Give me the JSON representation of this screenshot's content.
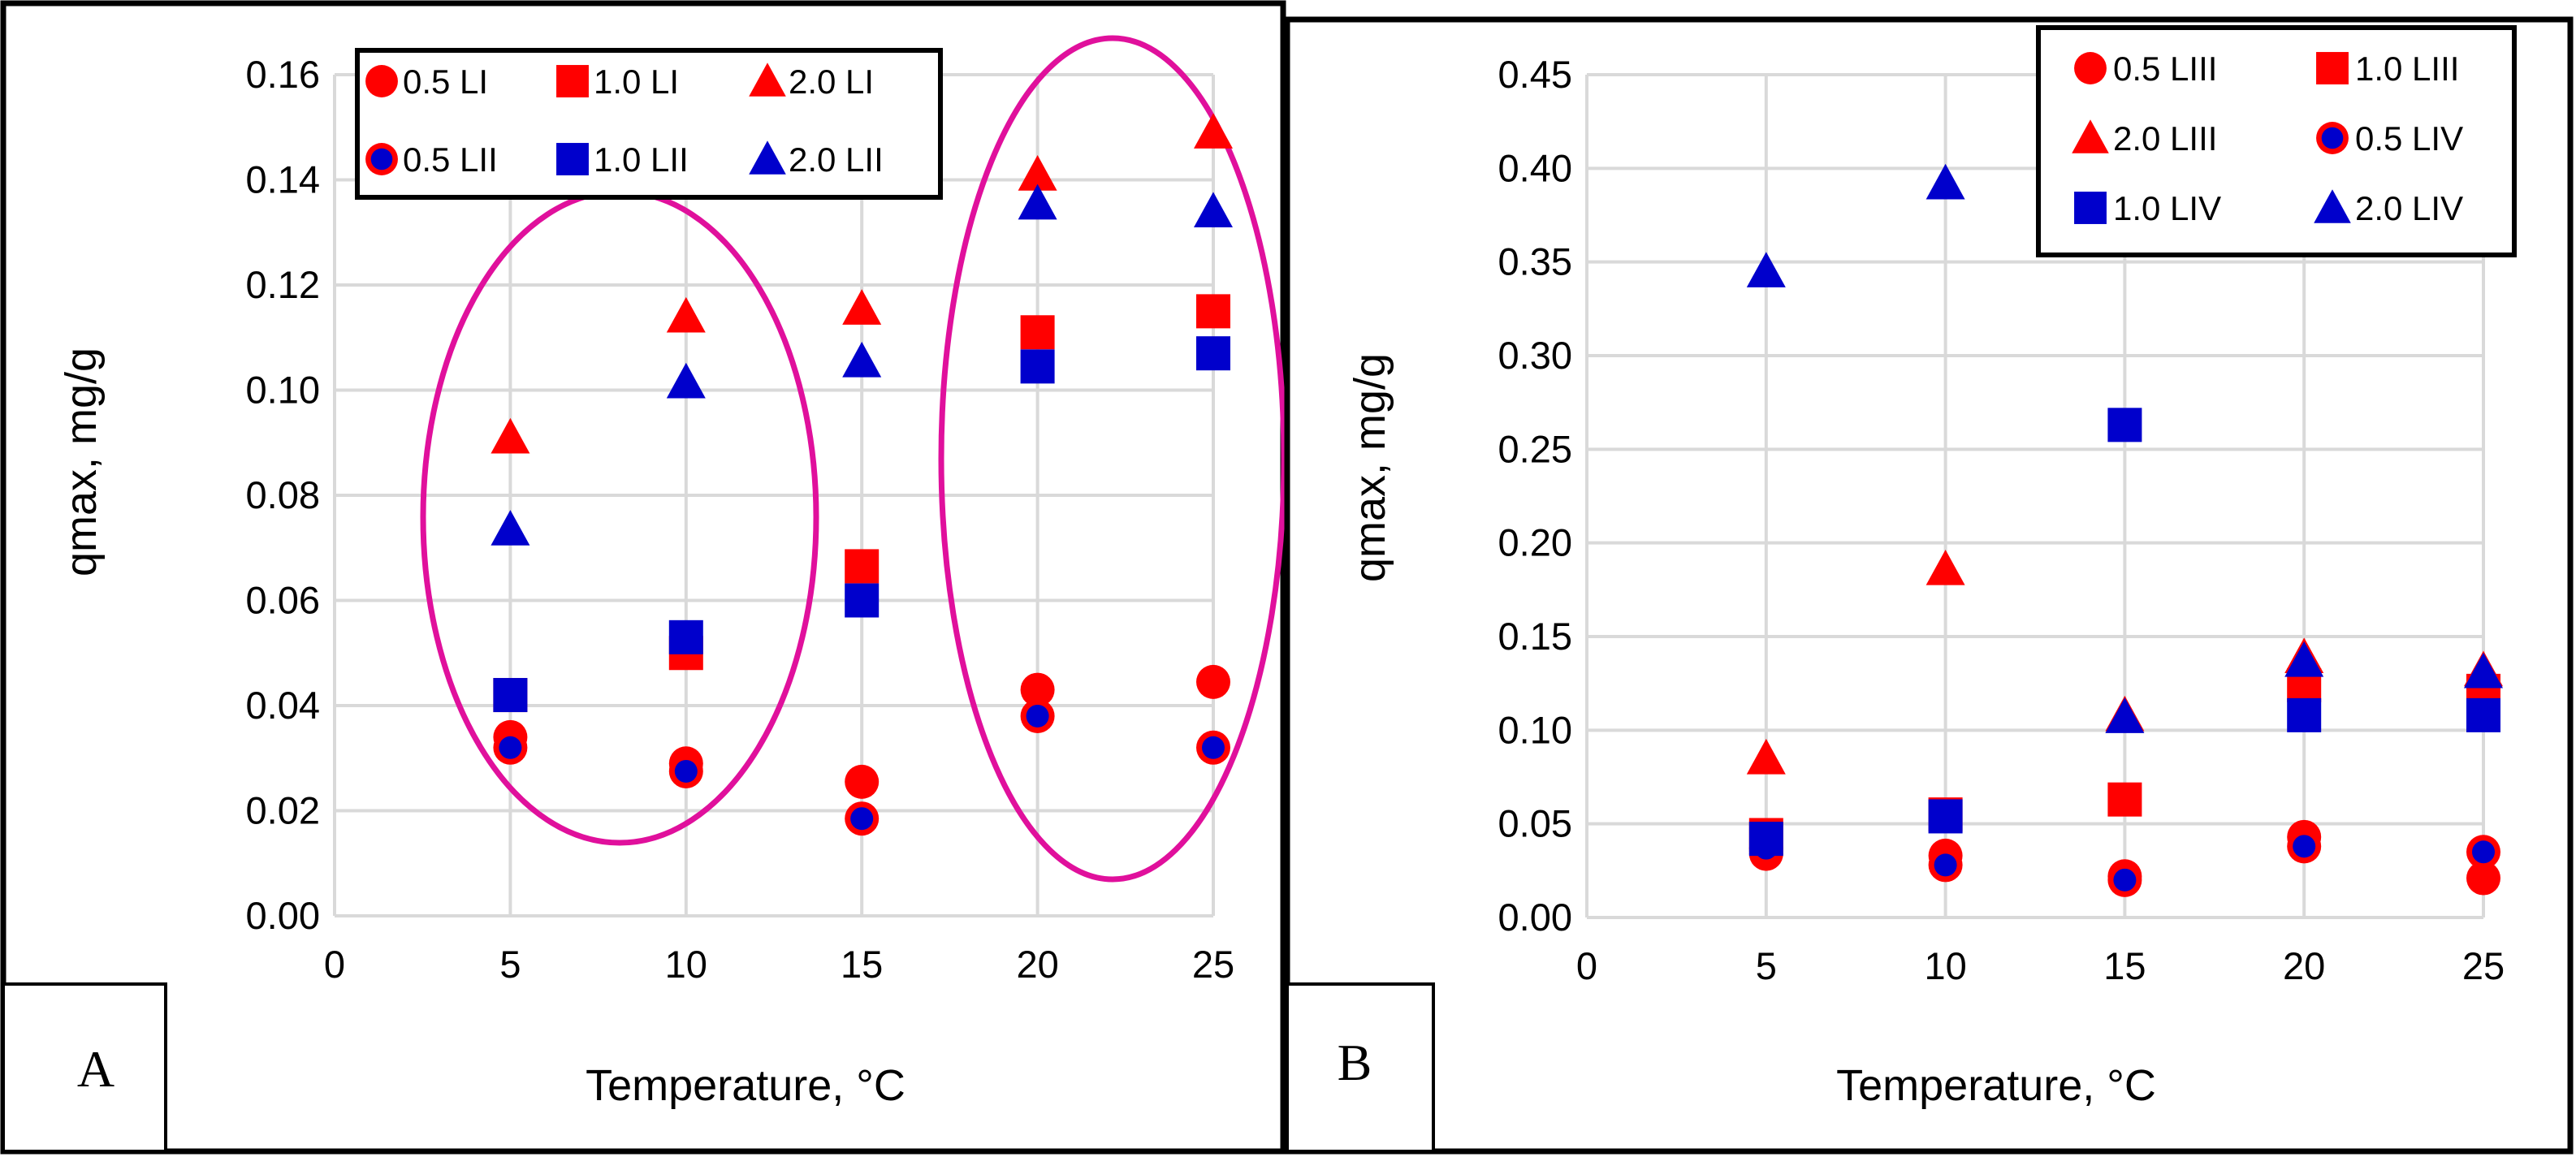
{
  "colors": {
    "red": "#ff0000",
    "blue": "#0000cc",
    "magenta": "#e0109c",
    "grid": "#d9d9d9"
  },
  "chart_data": [
    {
      "type": "scatter",
      "panel_label": "A",
      "xlabel": "Temperature, °C",
      "ylabel": "qmax, mg/g",
      "xlim": [
        0,
        25
      ],
      "ylim": [
        0,
        0.16
      ],
      "xticks": [
        "0",
        "5",
        "10",
        "15",
        "20",
        "25"
      ],
      "yticks": [
        "0.00",
        "0.02",
        "0.04",
        "0.06",
        "0.08",
        "0.10",
        "0.12",
        "0.14",
        "0.16"
      ],
      "grid": true,
      "legend_position": "top",
      "annotations": [
        "ellipse around 5–10 °C data",
        "ellipse around 20–25 °C data"
      ],
      "series": [
        {
          "name": "0.5 LI",
          "marker": "circle",
          "color": "red",
          "x": [
            5,
            10,
            15,
            20,
            25
          ],
          "y": [
            0.034,
            0.029,
            0.0255,
            0.043,
            0.0445
          ]
        },
        {
          "name": "1.0 LI",
          "marker": "square",
          "color": "red",
          "x": [
            5,
            10,
            15,
            20,
            25
          ],
          "y": [
            0.042,
            0.05,
            0.0665,
            0.111,
            0.115
          ]
        },
        {
          "name": "2.0 LI",
          "marker": "triangle",
          "color": "red",
          "x": [
            5,
            10,
            15,
            20,
            25
          ],
          "y": [
            0.091,
            0.114,
            0.1155,
            0.141,
            0.149
          ]
        },
        {
          "name": "0.5 LII",
          "marker": "ringed-circle",
          "color": "blue",
          "x": [
            5,
            10,
            15,
            20,
            25
          ],
          "y": [
            0.032,
            0.0275,
            0.0185,
            0.038,
            0.032
          ]
        },
        {
          "name": "1.0 LII",
          "marker": "square",
          "color": "blue",
          "x": [
            5,
            10,
            15,
            20,
            25
          ],
          "y": [
            0.042,
            0.053,
            0.06,
            0.1045,
            0.107
          ]
        },
        {
          "name": "2.0 LII",
          "marker": "triangle",
          "color": "blue",
          "x": [
            5,
            10,
            15,
            20,
            25
          ],
          "y": [
            0.0735,
            0.1015,
            0.1055,
            0.1355,
            0.134
          ]
        }
      ]
    },
    {
      "type": "scatter",
      "panel_label": "B",
      "xlabel": "Temperature, °C",
      "ylabel": "qmax, mg/g",
      "xlim": [
        0,
        25
      ],
      "ylim": [
        0,
        0.45
      ],
      "xticks": [
        "0",
        "5",
        "10",
        "15",
        "20",
        "25"
      ],
      "yticks": [
        "0.00",
        "0.05",
        "0.10",
        "0.15",
        "0.20",
        "0.25",
        "0.30",
        "0.35",
        "0.40",
        "0.45"
      ],
      "grid": true,
      "legend_position": "top-right",
      "series": [
        {
          "name": "0.5 LIII",
          "marker": "circle",
          "color": "red",
          "x": [
            5,
            10,
            15,
            20,
            25
          ],
          "y": [
            0.034,
            0.033,
            0.022,
            0.043,
            0.021
          ]
        },
        {
          "name": "1.0 LIII",
          "marker": "square",
          "color": "red",
          "x": [
            5,
            10,
            15,
            20,
            25
          ],
          "y": [
            0.044,
            0.055,
            0.063,
            0.124,
            0.121
          ]
        },
        {
          "name": "2.0 LIII",
          "marker": "triangle",
          "color": "red",
          "x": [
            5,
            10,
            15,
            20,
            25
          ],
          "y": [
            0.085,
            0.186,
            0.108,
            0.139,
            0.132
          ]
        },
        {
          "name": "0.5 LIV",
          "marker": "ringed-circle",
          "color": "blue",
          "x": [
            5,
            10,
            15,
            20,
            25
          ],
          "y": [
            0.037,
            0.028,
            0.02,
            0.038,
            0.035
          ]
        },
        {
          "name": "1.0 LIV",
          "marker": "square",
          "color": "blue",
          "x": [
            5,
            10,
            15,
            20,
            25
          ],
          "y": [
            0.042,
            0.054,
            0.263,
            0.108,
            0.108
          ]
        },
        {
          "name": "2.0 LIV",
          "marker": "triangle",
          "color": "blue",
          "x": [
            5,
            10,
            15,
            20,
            25
          ],
          "y": [
            0.345,
            0.392,
            0.107,
            0.137,
            0.131
          ]
        }
      ]
    }
  ]
}
